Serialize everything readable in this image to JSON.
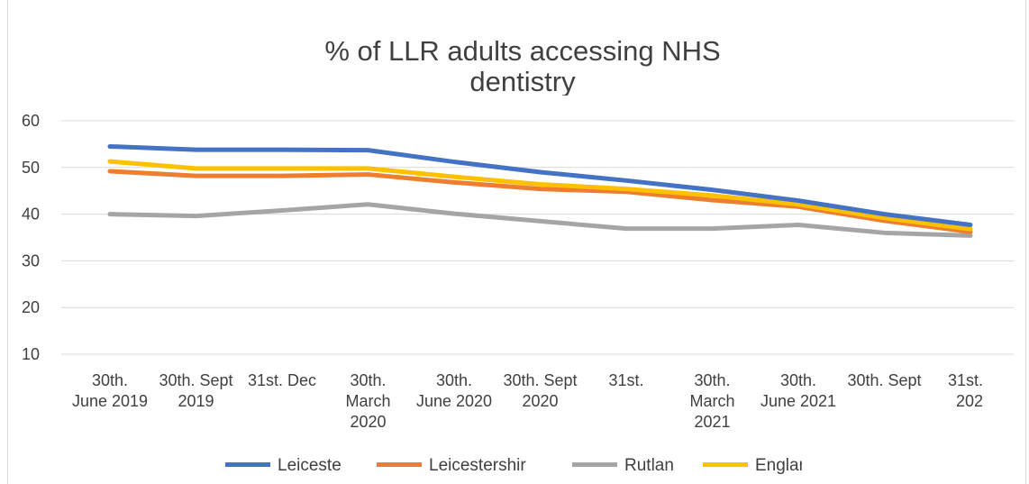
{
  "chart_data": {
    "type": "line",
    "title_lines": [
      "% of LLR adults accessing NHS",
      "dentistry"
    ],
    "categories": [
      [
        "30th.",
        "June 2019"
      ],
      [
        "30th. Sept",
        "2019"
      ],
      [
        "31st. Dec"
      ],
      [
        "30th.",
        "March",
        "2020"
      ],
      [
        "30th.",
        "June 2020"
      ],
      [
        "30th. Sept",
        "2020"
      ],
      [
        "31st."
      ],
      [
        "30th.",
        "March",
        "2021"
      ],
      [
        "30th.",
        "June 2021"
      ],
      [
        "30th. Sept"
      ],
      [
        "31st.",
        "202"
      ]
    ],
    "yticks": [
      "60",
      "50",
      "40",
      "30",
      "20",
      "10"
    ],
    "ylim": [
      10,
      60
    ],
    "grid": true,
    "legend_position": "bottom",
    "series": [
      {
        "name": "Leiceste",
        "color": "#4472c4",
        "values": [
          54.5,
          53.8,
          53.8,
          53.7,
          51.2,
          49,
          47.2,
          45.2,
          42.9,
          40,
          37.7
        ]
      },
      {
        "name": "Leicestershir",
        "color": "#ed7d31",
        "values": [
          49.2,
          48.2,
          48.2,
          48.5,
          46.8,
          45.4,
          44.8,
          43,
          41.6,
          38.6,
          36.2
        ]
      },
      {
        "name": "Rutlan",
        "color": "#a5a5a5",
        "values": [
          40,
          39.6,
          40.8,
          42.1,
          40.1,
          38.5,
          36.9,
          36.9,
          37.7,
          36,
          35.4
        ]
      },
      {
        "name": "Englan",
        "color": "#ffc000",
        "values": [
          51.3,
          49.8,
          49.8,
          49.8,
          48,
          46.4,
          45.4,
          44,
          42.1,
          39.2,
          36.8
        ]
      }
    ]
  }
}
